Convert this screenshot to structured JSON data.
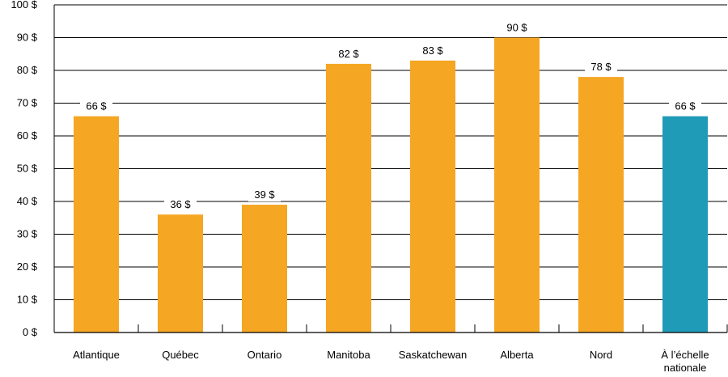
{
  "chart_data": {
    "type": "bar",
    "title": "",
    "xlabel": "",
    "ylabel": "",
    "ylim": [
      0,
      100
    ],
    "yticks": [
      0,
      10,
      20,
      30,
      40,
      50,
      60,
      70,
      80,
      90,
      100
    ],
    "ytick_labels": [
      "0 $",
      "10 $",
      "20 $",
      "30 $",
      "40 $",
      "50 $",
      "60 $",
      "70 $",
      "80 $",
      "90 $",
      "100 $"
    ],
    "grid": true,
    "legend": "none",
    "categories": [
      [
        "Atlantique"
      ],
      [
        "Québec"
      ],
      [
        "Ontario"
      ],
      [
        "Manitoba"
      ],
      [
        "Saskatchewan"
      ],
      [
        "Alberta"
      ],
      [
        "Nord"
      ],
      [
        "À l’échelle",
        "nationale"
      ]
    ],
    "values": [
      66,
      36,
      39,
      82,
      83,
      90,
      78,
      66
    ],
    "value_labels": [
      "66 $",
      "36 $",
      "39 $",
      "82 $",
      "83 $",
      "90 $",
      "78 $",
      "66 $"
    ],
    "colors": [
      "#f5a623",
      "#f5a623",
      "#f5a623",
      "#f5a623",
      "#f5a623",
      "#f5a623",
      "#f5a623",
      "#1f9bb8"
    ]
  }
}
